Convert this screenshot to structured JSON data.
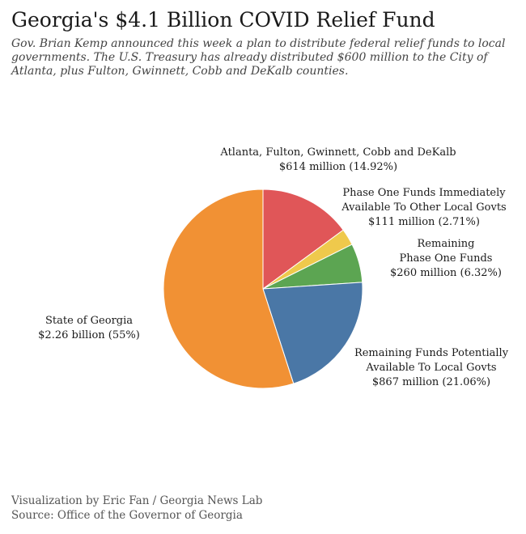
{
  "header": {
    "title": "Georgia's $4.1 Billion COVID Relief Fund",
    "subtitle": "Gov. Brian Kemp announced this week a plan to distribute federal relief funds to local governments.  The U.S. Treasury has already distributed $600 million to the City of Atlanta, plus Fulton, Gwinnett, Cobb and DeKalb counties."
  },
  "chart_data": {
    "type": "pie",
    "title": "Georgia's $4.1 Billion COVID Relief Fund",
    "start_angle_deg": 0,
    "direction": "clockwise",
    "slices": [
      {
        "label_lines": [
          "Atlanta, Fulton, Gwinnett, Cobb and DeKalb",
          "$614 million (14.92%)"
        ],
        "value": 614,
        "percent": 14.92,
        "color": "#e05658"
      },
      {
        "label_lines": [
          "Phase One Funds Immediately",
          "Available To Other Local Govts",
          "$111 million (2.71%)"
        ],
        "value": 111,
        "percent": 2.71,
        "color": "#efc94c"
      },
      {
        "label_lines": [
          "Remaining",
          "Phase One Funds",
          "$260 million (6.32%)"
        ],
        "value": 260,
        "percent": 6.32,
        "color": "#5ca552"
      },
      {
        "label_lines": [
          "Remaining Funds Potentially",
          "Available To Local Govts",
          "$867 million (21.06%)"
        ],
        "value": 867,
        "percent": 21.06,
        "color": "#4a77a6"
      },
      {
        "label_lines": [
          "State of Georgia",
          "$2.26 billion (55%)"
        ],
        "value": 2260,
        "percent": 55,
        "color": "#f19134"
      }
    ]
  },
  "footer": {
    "credit": "Visualization by Eric Fan / Georgia News Lab",
    "source": "Source: Office of the Governor of Georgia"
  }
}
